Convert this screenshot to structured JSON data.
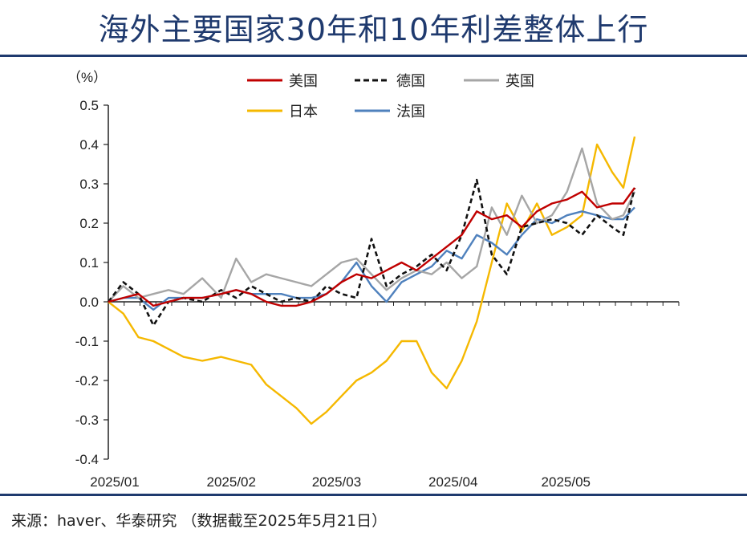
{
  "title": "海外主要国家30年和10年利差整体上行",
  "source": "来源：haver、华泰研究  （数据截至2025年5月21日）",
  "chart_data": {
    "type": "line",
    "unit_label": "（%）",
    "ylim": [
      -0.4,
      0.5
    ],
    "yticks": [
      0.5,
      0.4,
      0.3,
      0.2,
      0.1,
      0.0,
      -0.1,
      -0.2,
      -0.3,
      -0.4
    ],
    "ytick_labels": [
      "0.5",
      "0.4",
      "0.3",
      "0.2",
      "0.1",
      "0.0",
      "-0.1",
      "-0.2",
      "-0.3",
      "-0.4"
    ],
    "x_range": [
      "2025-01-01",
      "2025-05-21"
    ],
    "x_ticks": [
      {
        "label": "2025/01",
        "date": "2025-01-01"
      },
      {
        "label": "2025/02",
        "date": "2025-02-01"
      },
      {
        "label": "2025/03",
        "date": "2025-03-01"
      },
      {
        "label": "2025/04",
        "date": "2025-04-01"
      },
      {
        "label": "2025/05",
        "date": "2025-05-01"
      }
    ],
    "legend": "top",
    "grid": false,
    "series": [
      {
        "name": "美国",
        "color": "#c00000",
        "dash": "solid",
        "points": [
          [
            "2025-01-01",
            0.0
          ],
          [
            "2025-01-05",
            0.01
          ],
          [
            "2025-01-09",
            0.02
          ],
          [
            "2025-01-13",
            -0.01
          ],
          [
            "2025-01-17",
            0.0
          ],
          [
            "2025-01-21",
            0.01
          ],
          [
            "2025-01-26",
            0.01
          ],
          [
            "2025-01-31",
            0.02
          ],
          [
            "2025-02-04",
            0.03
          ],
          [
            "2025-02-08",
            0.02
          ],
          [
            "2025-02-12",
            0.0
          ],
          [
            "2025-02-16",
            -0.01
          ],
          [
            "2025-02-20",
            -0.01
          ],
          [
            "2025-02-24",
            0.0
          ],
          [
            "2025-02-28",
            0.02
          ],
          [
            "2025-03-04",
            0.05
          ],
          [
            "2025-03-08",
            0.07
          ],
          [
            "2025-03-12",
            0.06
          ],
          [
            "2025-03-16",
            0.08
          ],
          [
            "2025-03-20",
            0.1
          ],
          [
            "2025-03-24",
            0.08
          ],
          [
            "2025-03-28",
            0.11
          ],
          [
            "2025-04-01",
            0.14
          ],
          [
            "2025-04-05",
            0.17
          ],
          [
            "2025-04-09",
            0.23
          ],
          [
            "2025-04-13",
            0.21
          ],
          [
            "2025-04-17",
            0.22
          ],
          [
            "2025-04-21",
            0.19
          ],
          [
            "2025-04-25",
            0.23
          ],
          [
            "2025-04-29",
            0.25
          ],
          [
            "2025-05-03",
            0.26
          ],
          [
            "2025-05-07",
            0.28
          ],
          [
            "2025-05-11",
            0.24
          ],
          [
            "2025-05-15",
            0.25
          ],
          [
            "2025-05-18",
            0.25
          ],
          [
            "2025-05-21",
            0.29
          ]
        ]
      },
      {
        "name": "德国",
        "color": "#111111",
        "dash": "dashed",
        "points": [
          [
            "2025-01-01",
            0.0
          ],
          [
            "2025-01-05",
            0.05
          ],
          [
            "2025-01-09",
            0.02
          ],
          [
            "2025-01-13",
            -0.06
          ],
          [
            "2025-01-17",
            0.0
          ],
          [
            "2025-01-21",
            0.01
          ],
          [
            "2025-01-26",
            0.0
          ],
          [
            "2025-01-31",
            0.03
          ],
          [
            "2025-02-04",
            0.01
          ],
          [
            "2025-02-08",
            0.04
          ],
          [
            "2025-02-12",
            0.02
          ],
          [
            "2025-02-16",
            0.0
          ],
          [
            "2025-02-20",
            0.01
          ],
          [
            "2025-02-24",
            0.0
          ],
          [
            "2025-02-28",
            0.04
          ],
          [
            "2025-03-04",
            0.02
          ],
          [
            "2025-03-08",
            0.01
          ],
          [
            "2025-03-12",
            0.16
          ],
          [
            "2025-03-16",
            0.04
          ],
          [
            "2025-03-20",
            0.07
          ],
          [
            "2025-03-24",
            0.09
          ],
          [
            "2025-03-28",
            0.12
          ],
          [
            "2025-04-01",
            0.08
          ],
          [
            "2025-04-05",
            0.17
          ],
          [
            "2025-04-09",
            0.31
          ],
          [
            "2025-04-13",
            0.12
          ],
          [
            "2025-04-17",
            0.07
          ],
          [
            "2025-04-21",
            0.19
          ],
          [
            "2025-04-25",
            0.2
          ],
          [
            "2025-04-29",
            0.21
          ],
          [
            "2025-05-03",
            0.2
          ],
          [
            "2025-05-07",
            0.17
          ],
          [
            "2025-05-11",
            0.22
          ],
          [
            "2025-05-15",
            0.19
          ],
          [
            "2025-05-18",
            0.17
          ],
          [
            "2025-05-21",
            0.29
          ]
        ]
      },
      {
        "name": "英国",
        "color": "#a6a6a6",
        "dash": "solid",
        "points": [
          [
            "2025-01-01",
            0.0
          ],
          [
            "2025-01-05",
            0.04
          ],
          [
            "2025-01-09",
            0.01
          ],
          [
            "2025-01-13",
            0.02
          ],
          [
            "2025-01-17",
            0.03
          ],
          [
            "2025-01-21",
            0.02
          ],
          [
            "2025-01-26",
            0.06
          ],
          [
            "2025-01-31",
            0.01
          ],
          [
            "2025-02-04",
            0.11
          ],
          [
            "2025-02-08",
            0.05
          ],
          [
            "2025-02-12",
            0.07
          ],
          [
            "2025-02-16",
            0.06
          ],
          [
            "2025-02-20",
            0.05
          ],
          [
            "2025-02-24",
            0.04
          ],
          [
            "2025-02-28",
            0.07
          ],
          [
            "2025-03-04",
            0.1
          ],
          [
            "2025-03-08",
            0.11
          ],
          [
            "2025-03-12",
            0.07
          ],
          [
            "2025-03-16",
            0.03
          ],
          [
            "2025-03-20",
            0.06
          ],
          [
            "2025-03-24",
            0.08
          ],
          [
            "2025-03-28",
            0.07
          ],
          [
            "2025-04-01",
            0.1
          ],
          [
            "2025-04-05",
            0.06
          ],
          [
            "2025-04-09",
            0.09
          ],
          [
            "2025-04-13",
            0.24
          ],
          [
            "2025-04-17",
            0.17
          ],
          [
            "2025-04-21",
            0.27
          ],
          [
            "2025-04-25",
            0.2
          ],
          [
            "2025-04-29",
            0.22
          ],
          [
            "2025-05-03",
            0.28
          ],
          [
            "2025-05-07",
            0.39
          ],
          [
            "2025-05-11",
            0.25
          ],
          [
            "2025-05-15",
            0.21
          ],
          [
            "2025-05-18",
            0.22
          ],
          [
            "2025-05-21",
            0.28
          ]
        ]
      },
      {
        "name": "日本",
        "color": "#f5b800",
        "dash": "solid",
        "points": [
          [
            "2025-01-01",
            0.0
          ],
          [
            "2025-01-05",
            -0.03
          ],
          [
            "2025-01-09",
            -0.09
          ],
          [
            "2025-01-13",
            -0.1
          ],
          [
            "2025-01-17",
            -0.12
          ],
          [
            "2025-01-21",
            -0.14
          ],
          [
            "2025-01-26",
            -0.15
          ],
          [
            "2025-01-31",
            -0.14
          ],
          [
            "2025-02-04",
            -0.15
          ],
          [
            "2025-02-08",
            -0.16
          ],
          [
            "2025-02-12",
            -0.21
          ],
          [
            "2025-02-16",
            -0.24
          ],
          [
            "2025-02-20",
            -0.27
          ],
          [
            "2025-02-24",
            -0.31
          ],
          [
            "2025-02-28",
            -0.28
          ],
          [
            "2025-03-04",
            -0.24
          ],
          [
            "2025-03-08",
            -0.2
          ],
          [
            "2025-03-12",
            -0.18
          ],
          [
            "2025-03-16",
            -0.15
          ],
          [
            "2025-03-20",
            -0.1
          ],
          [
            "2025-03-24",
            -0.1
          ],
          [
            "2025-03-28",
            -0.18
          ],
          [
            "2025-04-01",
            -0.22
          ],
          [
            "2025-04-05",
            -0.15
          ],
          [
            "2025-04-09",
            -0.05
          ],
          [
            "2025-04-13",
            0.1
          ],
          [
            "2025-04-17",
            0.25
          ],
          [
            "2025-04-21",
            0.18
          ],
          [
            "2025-04-25",
            0.25
          ],
          [
            "2025-04-29",
            0.17
          ],
          [
            "2025-05-03",
            0.19
          ],
          [
            "2025-05-07",
            0.22
          ],
          [
            "2025-05-11",
            0.4
          ],
          [
            "2025-05-15",
            0.33
          ],
          [
            "2025-05-18",
            0.29
          ],
          [
            "2025-05-21",
            0.42
          ]
        ]
      },
      {
        "name": "法国",
        "color": "#4f81bd",
        "dash": "solid",
        "points": [
          [
            "2025-01-01",
            0.0
          ],
          [
            "2025-01-05",
            0.01
          ],
          [
            "2025-01-09",
            0.01
          ],
          [
            "2025-01-13",
            -0.02
          ],
          [
            "2025-01-17",
            0.01
          ],
          [
            "2025-01-21",
            0.01
          ],
          [
            "2025-01-26",
            0.01
          ],
          [
            "2025-01-31",
            0.02
          ],
          [
            "2025-02-04",
            0.03
          ],
          [
            "2025-02-08",
            0.02
          ],
          [
            "2025-02-12",
            0.02
          ],
          [
            "2025-02-16",
            0.02
          ],
          [
            "2025-02-20",
            0.01
          ],
          [
            "2025-02-24",
            0.01
          ],
          [
            "2025-02-28",
            0.02
          ],
          [
            "2025-03-04",
            0.05
          ],
          [
            "2025-03-08",
            0.1
          ],
          [
            "2025-03-12",
            0.04
          ],
          [
            "2025-03-16",
            0.0
          ],
          [
            "2025-03-20",
            0.05
          ],
          [
            "2025-03-24",
            0.07
          ],
          [
            "2025-03-28",
            0.09
          ],
          [
            "2025-04-01",
            0.13
          ],
          [
            "2025-04-05",
            0.11
          ],
          [
            "2025-04-09",
            0.17
          ],
          [
            "2025-04-13",
            0.15
          ],
          [
            "2025-04-17",
            0.12
          ],
          [
            "2025-04-21",
            0.17
          ],
          [
            "2025-04-25",
            0.21
          ],
          [
            "2025-04-29",
            0.2
          ],
          [
            "2025-05-03",
            0.22
          ],
          [
            "2025-05-07",
            0.23
          ],
          [
            "2025-05-11",
            0.22
          ],
          [
            "2025-05-15",
            0.21
          ],
          [
            "2025-05-18",
            0.21
          ],
          [
            "2025-05-21",
            0.24
          ]
        ]
      }
    ]
  }
}
